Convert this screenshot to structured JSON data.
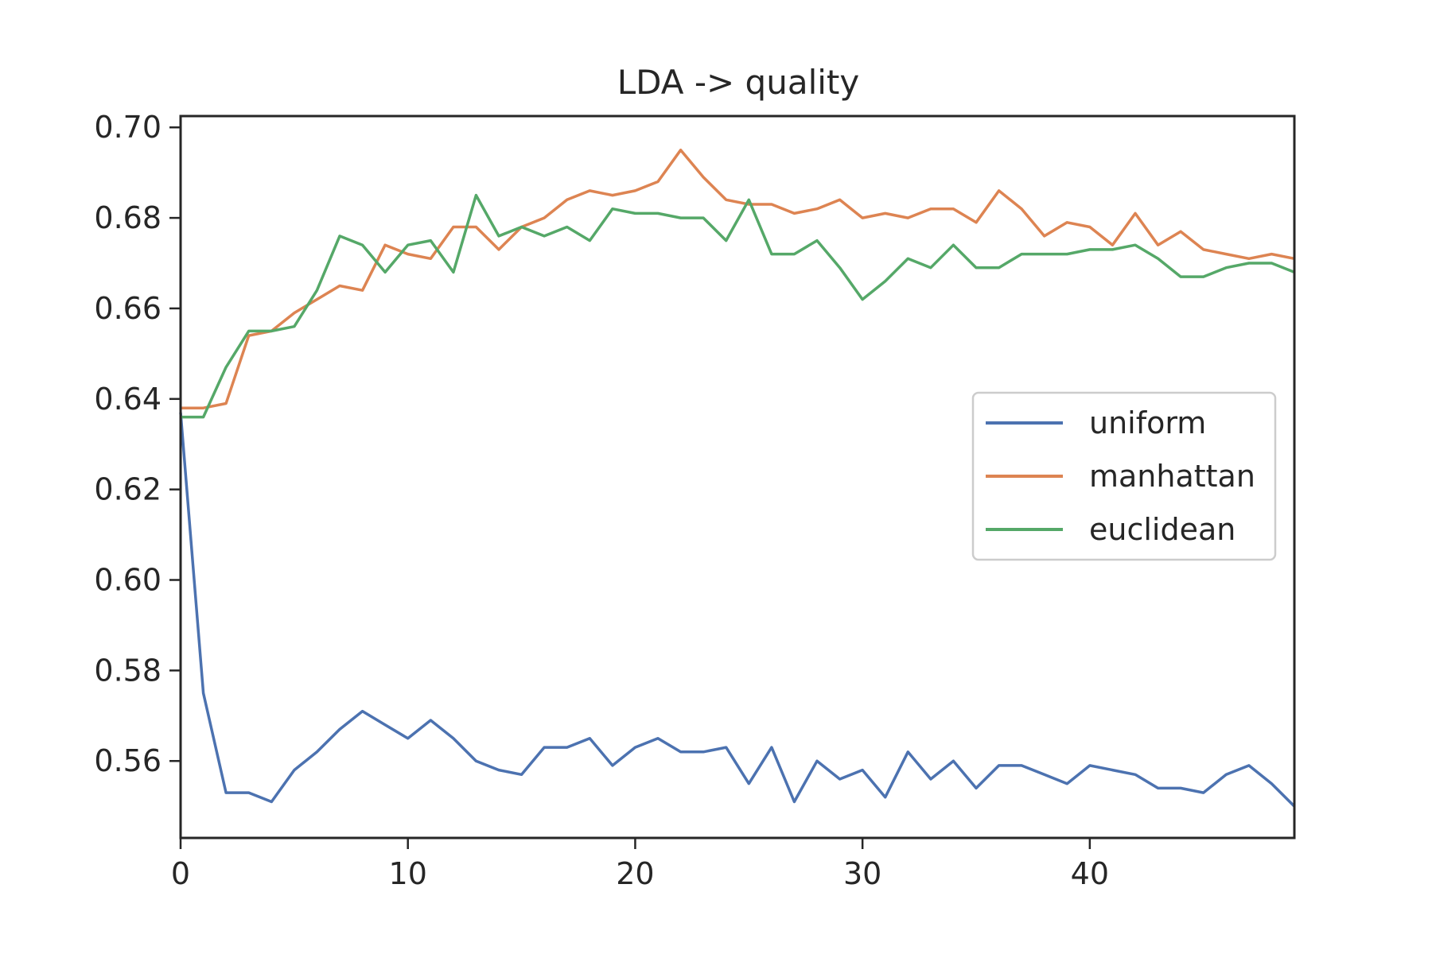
{
  "chart_data": {
    "type": "line",
    "title": "LDA -> quality",
    "xlabel": "",
    "ylabel": "",
    "xlim": [
      0,
      49
    ],
    "ylim": [
      0.543,
      0.7025
    ],
    "xticks": [
      0,
      10,
      20,
      30,
      40
    ],
    "xtick_labels": [
      "0",
      "10",
      "20",
      "30",
      "40"
    ],
    "yticks": [
      0.56,
      0.58,
      0.6,
      0.62,
      0.64,
      0.66,
      0.68,
      0.7
    ],
    "ytick_labels": [
      "0.56",
      "0.58",
      "0.60",
      "0.62",
      "0.64",
      "0.66",
      "0.68",
      "0.70"
    ],
    "grid": false,
    "legend_position": "center-right",
    "x": [
      0,
      1,
      2,
      3,
      4,
      5,
      6,
      7,
      8,
      9,
      10,
      11,
      12,
      13,
      14,
      15,
      16,
      17,
      18,
      19,
      20,
      21,
      22,
      23,
      24,
      25,
      26,
      27,
      28,
      29,
      30,
      31,
      32,
      33,
      34,
      35,
      36,
      37,
      38,
      39,
      40,
      41,
      42,
      43,
      44,
      45,
      46,
      47,
      48,
      49
    ],
    "series": [
      {
        "name": "uniform",
        "color": "#4c72b0",
        "values": [
          0.637,
          0.575,
          0.553,
          0.553,
          0.551,
          0.558,
          0.562,
          0.567,
          0.571,
          0.568,
          0.565,
          0.569,
          0.565,
          0.56,
          0.558,
          0.557,
          0.563,
          0.563,
          0.565,
          0.559,
          0.563,
          0.565,
          0.562,
          0.562,
          0.563,
          0.555,
          0.563,
          0.551,
          0.56,
          0.556,
          0.558,
          0.552,
          0.562,
          0.556,
          0.56,
          0.554,
          0.559,
          0.559,
          0.557,
          0.555,
          0.559,
          0.558,
          0.557,
          0.554,
          0.554,
          0.553,
          0.557,
          0.559,
          0.555,
          0.55
        ]
      },
      {
        "name": "manhattan",
        "color": "#dd8452",
        "values": [
          0.638,
          0.638,
          0.639,
          0.654,
          0.655,
          0.659,
          0.662,
          0.665,
          0.664,
          0.674,
          0.672,
          0.671,
          0.678,
          0.678,
          0.673,
          0.678,
          0.68,
          0.684,
          0.686,
          0.685,
          0.686,
          0.688,
          0.695,
          0.689,
          0.684,
          0.683,
          0.683,
          0.681,
          0.682,
          0.684,
          0.68,
          0.681,
          0.68,
          0.682,
          0.682,
          0.679,
          0.686,
          0.682,
          0.676,
          0.679,
          0.678,
          0.674,
          0.681,
          0.674,
          0.677,
          0.673,
          0.672,
          0.671,
          0.672,
          0.671
        ]
      },
      {
        "name": "euclidean",
        "color": "#55a868",
        "values": [
          0.636,
          0.636,
          0.647,
          0.655,
          0.655,
          0.656,
          0.664,
          0.676,
          0.674,
          0.668,
          0.674,
          0.675,
          0.668,
          0.685,
          0.676,
          0.678,
          0.676,
          0.678,
          0.675,
          0.682,
          0.681,
          0.681,
          0.68,
          0.68,
          0.675,
          0.684,
          0.672,
          0.672,
          0.675,
          0.669,
          0.662,
          0.666,
          0.671,
          0.669,
          0.674,
          0.669,
          0.669,
          0.672,
          0.672,
          0.672,
          0.673,
          0.673,
          0.674,
          0.671,
          0.667,
          0.667,
          0.669,
          0.67,
          0.67,
          0.668
        ]
      }
    ]
  }
}
